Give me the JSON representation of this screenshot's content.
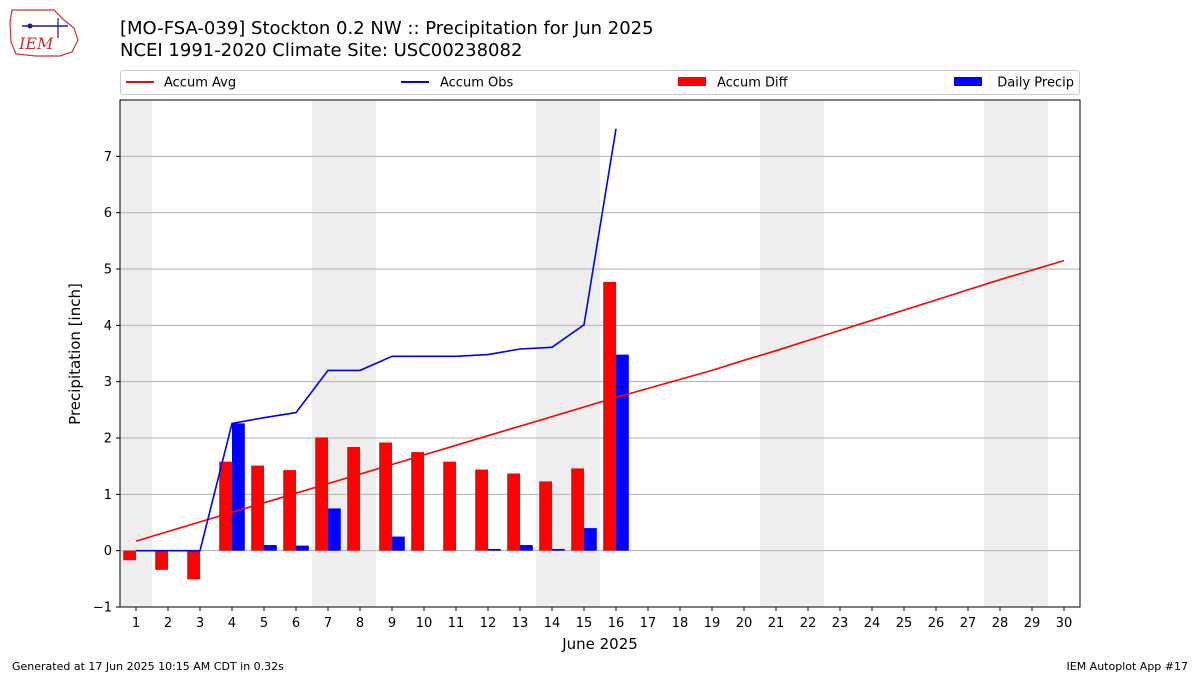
{
  "header": {
    "title": "[MO-FSA-039] Stockton 0.2 NW :: Precipitation for Jun 2025",
    "subtitle": "NCEI 1991-2020 Climate Site: USC00238082",
    "logo_text": "IEM"
  },
  "footer": {
    "generated": "Generated at 17 Jun 2025 10:15 AM CDT in 0.32s",
    "app": "IEM Autoplot App #17"
  },
  "chart_data": {
    "type": "bar",
    "xlabel": "June 2025",
    "ylabel": "Precipitation [inch]",
    "xlim": [
      0.5,
      30.5
    ],
    "ylim": [
      -1,
      8
    ],
    "yticks": [
      -1,
      0,
      1,
      2,
      3,
      4,
      5,
      6,
      7
    ],
    "ytick_labels": [
      "−1",
      "0",
      "1",
      "2",
      "3",
      "4",
      "5",
      "6",
      "7"
    ],
    "x": [
      1,
      2,
      3,
      4,
      5,
      6,
      7,
      8,
      9,
      10,
      11,
      12,
      13,
      14,
      15,
      16,
      17,
      18,
      19,
      20,
      21,
      22,
      23,
      24,
      25,
      26,
      27,
      28,
      29,
      30
    ],
    "weekend_bands": [
      [
        0.5,
        1.5
      ],
      [
        6.5,
        8.5
      ],
      [
        13.5,
        15.5
      ],
      [
        20.5,
        22.5
      ],
      [
        27.5,
        29.5
      ]
    ],
    "grid": "y",
    "legend": {
      "placement": "top",
      "entries": [
        {
          "label": "Accum Avg",
          "kind": "line",
          "color": "#ff0000"
        },
        {
          "label": "Accum Obs",
          "kind": "line",
          "color": "#0000ff"
        },
        {
          "label": "Accum Diff",
          "kind": "bar",
          "color": "#ff0000"
        },
        {
          "label": "Daily Precip",
          "kind": "bar",
          "color": "#0000ff"
        }
      ]
    },
    "series": [
      {
        "name": "Accum Avg",
        "kind": "line",
        "color": "#ff0000",
        "x": [
          1,
          2,
          3,
          4,
          5,
          6,
          7,
          8,
          9,
          10,
          11,
          12,
          13,
          14,
          15,
          16,
          17,
          18,
          19,
          20,
          21,
          22,
          23,
          24,
          25,
          26,
          27,
          28,
          29,
          30
        ],
        "values": [
          0.17,
          0.34,
          0.51,
          0.68,
          0.85,
          1.02,
          1.19,
          1.36,
          1.53,
          1.7,
          1.87,
          2.04,
          2.21,
          2.38,
          2.55,
          2.72,
          2.88,
          3.04,
          3.2,
          3.38,
          3.55,
          3.73,
          3.91,
          4.09,
          4.27,
          4.45,
          4.63,
          4.81,
          4.98,
          5.15
        ]
      },
      {
        "name": "Accum Obs",
        "kind": "line",
        "color": "#0000ff",
        "x": [
          1,
          2,
          3,
          4,
          5,
          6,
          7,
          8,
          9,
          10,
          11,
          12,
          13,
          14,
          15,
          16
        ],
        "values": [
          0.0,
          0.0,
          0.0,
          2.26,
          2.36,
          2.45,
          3.2,
          3.2,
          3.45,
          3.45,
          3.45,
          3.48,
          3.58,
          3.61,
          4.01,
          7.49
        ]
      },
      {
        "name": "Accum Diff",
        "kind": "bar",
        "color": "#ff0000",
        "x": [
          1,
          2,
          3,
          4,
          5,
          6,
          7,
          8,
          9,
          10,
          11,
          12,
          13,
          14,
          15,
          16
        ],
        "values": [
          -0.17,
          -0.34,
          -0.51,
          1.58,
          1.51,
          1.43,
          2.01,
          1.84,
          1.92,
          1.75,
          1.58,
          1.44,
          1.37,
          1.23,
          1.46,
          4.77
        ]
      },
      {
        "name": "Daily Precip",
        "kind": "bar",
        "color": "#0000ff",
        "x": [
          1,
          2,
          3,
          4,
          5,
          6,
          7,
          8,
          9,
          10,
          11,
          12,
          13,
          14,
          15,
          16
        ],
        "values": [
          0.0,
          0.0,
          0.0,
          2.26,
          0.1,
          0.09,
          0.75,
          0.0,
          0.25,
          0.0,
          0.0,
          0.03,
          0.1,
          0.03,
          0.4,
          3.48
        ]
      }
    ]
  }
}
